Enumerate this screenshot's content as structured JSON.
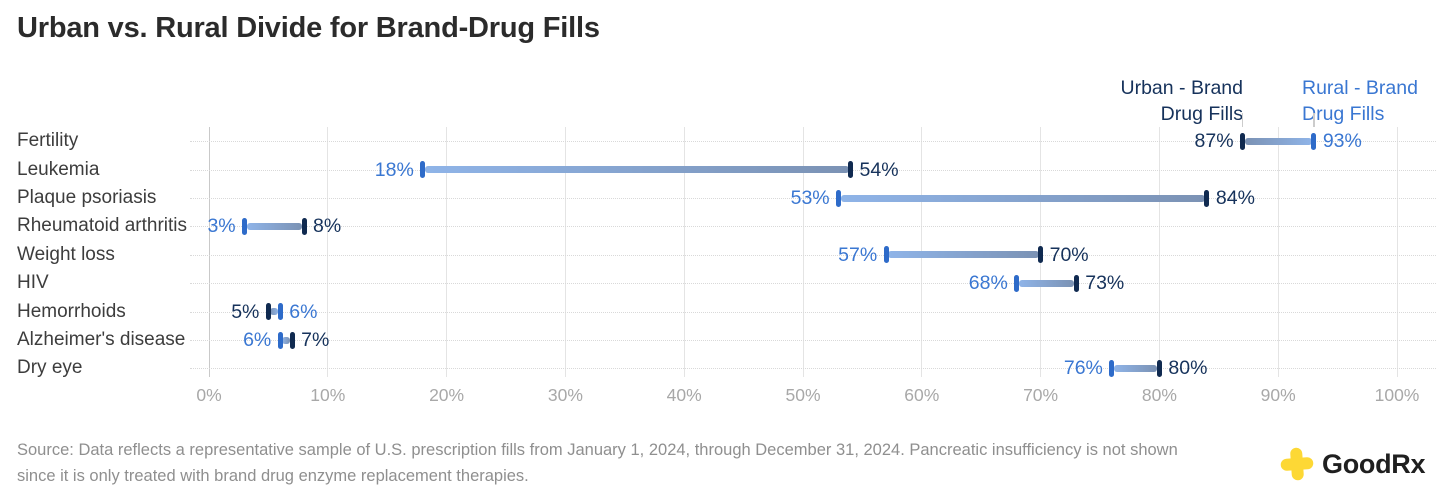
{
  "title": "Urban vs. Rural Divide for Brand-Drug Fills",
  "chart_data": {
    "type": "dumbbell",
    "categories": [
      "Fertility",
      "Leukemia",
      "Plaque psoriasis",
      "Rheumatoid arthritis",
      "Weight loss",
      "HIV",
      "Hemorrhoids",
      "Alzheimer's disease",
      "Dry eye"
    ],
    "series": [
      {
        "name": "Urban - Brand Drug Fills",
        "values": [
          87,
          54,
          84,
          8,
          70,
          73,
          5,
          7,
          80
        ],
        "color": "#16325b",
        "cap_color": "#102a50"
      },
      {
        "name": "Rural - Brand Drug Fills",
        "values": [
          93,
          18,
          53,
          3,
          57,
          68,
          6,
          6,
          76
        ],
        "color": "#3a77d2",
        "cap_color": "#2e6bc9"
      }
    ],
    "x_ticks": [
      "0%",
      "10%",
      "20%",
      "30%",
      "40%",
      "50%",
      "60%",
      "70%",
      "80%",
      "90%",
      "100%"
    ],
    "xlim": [
      0,
      100
    ],
    "value_suffix": "%",
    "bar_gradient": {
      "urban_end": "#7b92b4",
      "rural_end": "#8fb4e8"
    },
    "grid": {
      "vertical": true,
      "row_dotted": true
    },
    "legend_position": "top-right"
  },
  "source": {
    "lines": [
      "Source: Data reflects a representative sample of U.S. prescription fills from January 1, 2024, through December 31, 2024. Pancreatic insufficiency is not shown",
      "since it is only treated with brand drug enzyme replacement therapies."
    ]
  },
  "logo": {
    "text": "GoodRx",
    "accent_color": "#fdd835"
  }
}
